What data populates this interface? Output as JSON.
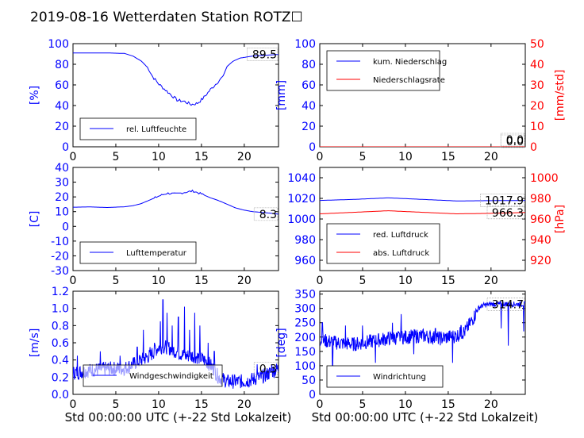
{
  "title": "2019-08-16 Wetterdaten Station ROTZ",
  "title_glyph": "☐",
  "colors": {
    "blue": "#0000ff",
    "red": "#ff0000",
    "axis": "#000000"
  },
  "chart_data": [
    {
      "type": "line",
      "id": "humidity",
      "ylabel": "[%]",
      "ylim": [
        0,
        100
      ],
      "yticks": [
        0,
        20,
        40,
        60,
        80,
        100
      ],
      "xlim": [
        0,
        24
      ],
      "xticks": [
        0,
        5,
        10,
        15,
        20
      ],
      "latest_label": "89.5",
      "legend_location": "lower-left",
      "series": [
        {
          "name": "rel. Luftfeuchte",
          "color": "#0000ff",
          "points": [
            [
              0,
              91
            ],
            [
              2,
              91
            ],
            [
              4,
              91
            ],
            [
              6,
              90.5
            ],
            [
              7,
              88
            ],
            [
              8,
              83
            ],
            [
              8.8,
              76
            ],
            [
              9.3,
              68
            ],
            [
              10,
              61
            ],
            [
              10.8,
              55
            ],
            [
              11.5,
              50
            ],
            [
              12.2,
              45
            ],
            [
              13,
              44
            ],
            [
              13.8,
              41
            ],
            [
              14.5,
              42
            ],
            [
              15.2,
              47
            ],
            [
              16,
              55
            ],
            [
              16.8,
              62
            ],
            [
              17.5,
              68
            ],
            [
              18,
              78
            ],
            [
              18.7,
              83
            ],
            [
              19.5,
              86
            ],
            [
              21,
              88
            ],
            [
              22,
              88.5
            ],
            [
              24,
              89.5
            ]
          ]
        }
      ]
    },
    {
      "type": "line",
      "id": "precipitation",
      "ylabel": "[mm]",
      "ylabel_right": "[mm/std]",
      "ylim": [
        0,
        100
      ],
      "yticks": [
        0,
        20,
        40,
        60,
        80,
        100
      ],
      "ylim_right": [
        0,
        50
      ],
      "yticks_right": [
        0,
        10,
        20,
        30,
        40,
        50
      ],
      "xlim": [
        0,
        24
      ],
      "xticks": [
        0,
        5,
        10,
        15,
        20
      ],
      "latest_label": "0.0",
      "latest_label_right": "0.0",
      "legend_location": "upper-left",
      "series": [
        {
          "name": "kum. Niederschlag",
          "color": "#0000ff",
          "axis": "left",
          "points": [
            [
              0,
              0
            ],
            [
              24,
              0
            ]
          ]
        },
        {
          "name": "Niederschlagsrate",
          "color": "#ff0000",
          "axis": "right",
          "points": [
            [
              0,
              0
            ],
            [
              24,
              0
            ]
          ]
        }
      ]
    },
    {
      "type": "line",
      "id": "temperature",
      "ylabel": "[C]",
      "ylim": [
        -30,
        40
      ],
      "yticks": [
        -30,
        -20,
        -10,
        0,
        10,
        20,
        30,
        40
      ],
      "xlim": [
        0,
        24
      ],
      "xticks": [
        0,
        5,
        10,
        15,
        20
      ],
      "latest_label": "8.3",
      "legend_location": "lower-left",
      "series": [
        {
          "name": "Lufttemperatur",
          "color": "#0000ff",
          "points": [
            [
              0,
              13
            ],
            [
              2,
              13.2
            ],
            [
              4,
              12.8
            ],
            [
              6,
              13.3
            ],
            [
              7,
              14
            ],
            [
              8,
              15.5
            ],
            [
              9,
              18
            ],
            [
              10,
              20.5
            ],
            [
              11,
              22.5
            ],
            [
              12,
              22
            ],
            [
              13,
              23
            ],
            [
              14,
              24
            ],
            [
              15,
              22
            ],
            [
              16,
              19.5
            ],
            [
              17,
              17.5
            ],
            [
              18,
              15
            ],
            [
              19,
              12.5
            ],
            [
              20,
              11
            ],
            [
              21,
              10
            ],
            [
              22,
              9.5
            ],
            [
              23,
              9
            ],
            [
              24,
              8.3
            ]
          ]
        }
      ]
    },
    {
      "type": "line",
      "id": "pressure",
      "ylabel_right": "[hPa]",
      "ylim": [
        950,
        1050
      ],
      "yticks": [
        960,
        980,
        1000,
        1020,
        1040
      ],
      "ylim_right": [
        910,
        1010
      ],
      "yticks_right": [
        920,
        940,
        960,
        980,
        1000
      ],
      "xlim": [
        0,
        24
      ],
      "xticks": [
        0,
        5,
        10,
        15,
        20
      ],
      "latest_label": "1017.9",
      "latest_label_right": "966.3",
      "legend_location": "lower-left",
      "series": [
        {
          "name": "red. Luftdruck",
          "color": "#0000ff",
          "axis": "left",
          "points": [
            [
              0,
              1018
            ],
            [
              4,
              1019
            ],
            [
              8,
              1020.5
            ],
            [
              12,
              1019
            ],
            [
              16,
              1017.5
            ],
            [
              20,
              1017.8
            ],
            [
              24,
              1017.9
            ]
          ]
        },
        {
          "name": "abs. Luftdruck",
          "color": "#ff0000",
          "axis": "right",
          "points": [
            [
              0,
              965
            ],
            [
              4,
              966.5
            ],
            [
              8,
              968
            ],
            [
              12,
              966.5
            ],
            [
              16,
              965
            ],
            [
              20,
              965.5
            ],
            [
              24,
              966.3
            ]
          ]
        }
      ]
    },
    {
      "type": "line",
      "id": "wind_speed",
      "ylabel": "[m/s]",
      "xlabel": "Std 00:00:00 UTC (+-22 Std Lokalzeit)",
      "ylim": [
        0,
        1.2
      ],
      "yticks": [
        0.0,
        0.2,
        0.4,
        0.6,
        0.8,
        1.0,
        1.2
      ],
      "xlim": [
        0,
        24
      ],
      "xticks": [
        0,
        5,
        10,
        15,
        20
      ],
      "latest_label": "0.3",
      "legend_location": "lower-center",
      "series": [
        {
          "name": "Windgeschwindigkeit",
          "color": "#0000ff",
          "noisy": true,
          "points": [
            [
              0,
              0.25
            ],
            [
              2,
              0.28
            ],
            [
              4,
              0.3
            ],
            [
              6,
              0.3
            ],
            [
              7,
              0.35
            ],
            [
              8,
              0.4
            ],
            [
              9,
              0.45
            ],
            [
              10,
              0.55
            ],
            [
              11,
              0.55
            ],
            [
              12,
              0.5
            ],
            [
              13,
              0.45
            ],
            [
              14,
              0.45
            ],
            [
              15,
              0.42
            ],
            [
              16,
              0.35
            ],
            [
              17,
              0.2
            ],
            [
              18,
              0.15
            ],
            [
              20,
              0.15
            ],
            [
              22,
              0.2
            ],
            [
              24,
              0.3
            ]
          ],
          "spikes": [
            [
              0.5,
              0.45
            ],
            [
              3.2,
              0.5
            ],
            [
              5.5,
              0.45
            ],
            [
              7.5,
              0.55
            ],
            [
              8.2,
              0.75
            ],
            [
              9.0,
              0.55
            ],
            [
              9.5,
              0.6
            ],
            [
              10.2,
              0.85
            ],
            [
              10.5,
              1.1
            ],
            [
              11.0,
              0.95
            ],
            [
              11.6,
              0.8
            ],
            [
              12.3,
              0.9
            ],
            [
              13.0,
              1.02
            ],
            [
              13.6,
              0.75
            ],
            [
              14.2,
              0.95
            ],
            [
              14.8,
              0.8
            ],
            [
              15.8,
              0.6
            ],
            [
              16.5,
              0.5
            ],
            [
              21.5,
              0.35
            ],
            [
              23.2,
              0.35
            ]
          ]
        }
      ]
    },
    {
      "type": "line",
      "id": "wind_direction",
      "ylabel": "[deg]",
      "xlabel": "Std 00:00:00 UTC (+-22 Std Lokalzeit)",
      "ylim": [
        0,
        360
      ],
      "yticks": [
        0,
        50,
        100,
        150,
        200,
        250,
        300,
        350
      ],
      "xlim": [
        0,
        24
      ],
      "xticks": [
        0,
        5,
        10,
        15,
        20
      ],
      "latest_label": "314.7",
      "legend_location": "lower-left",
      "series": [
        {
          "name": "Windrichtung",
          "color": "#0000ff",
          "noisy": true,
          "points": [
            [
              0,
              190
            ],
            [
              2,
              180
            ],
            [
              4,
              175
            ],
            [
              6,
              185
            ],
            [
              8,
              195
            ],
            [
              10,
              200
            ],
            [
              12,
              205
            ],
            [
              14,
              195
            ],
            [
              16,
              205
            ],
            [
              17,
              220
            ],
            [
              18,
              270
            ],
            [
              18.5,
              300
            ],
            [
              19,
              310
            ],
            [
              20,
              315
            ],
            [
              22,
              315
            ],
            [
              24,
              314.7
            ]
          ],
          "spikes": [
            [
              0.3,
              250
            ],
            [
              1.5,
              100
            ],
            [
              3,
              240
            ],
            [
              5,
              240
            ],
            [
              6.5,
              110
            ],
            [
              8.5,
              250
            ],
            [
              9.5,
              280
            ],
            [
              11,
              140
            ],
            [
              13.5,
              230
            ],
            [
              15.5,
              110
            ],
            [
              16.5,
              240
            ],
            [
              21.2,
              230
            ],
            [
              22,
              170
            ],
            [
              23.8,
              220
            ]
          ]
        }
      ]
    }
  ]
}
